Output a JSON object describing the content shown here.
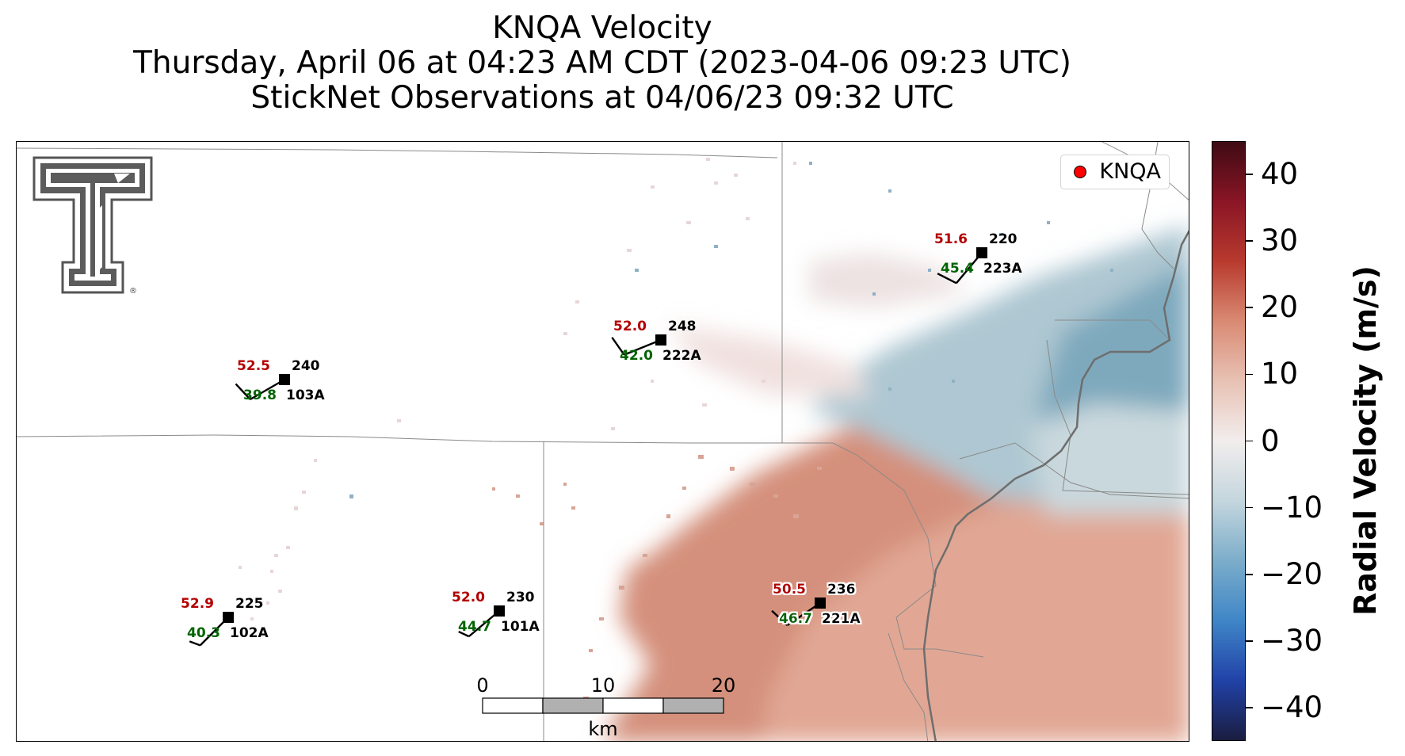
{
  "title": {
    "line1": "KNQA Velocity",
    "line2": "Thursday, April 06 at 04:23 AM CDT (2023-04-06 09:23 UTC)",
    "line3": "StickNet Observations at 04/06/23 09:32 UTC"
  },
  "legend": {
    "label": "KNQA",
    "color": "#ff0000"
  },
  "logo": {
    "name": "texas-tech-double-t-logo",
    "mark": "®"
  },
  "colorbar": {
    "label": "Radial Velocity (m/s)",
    "vmin": -45,
    "vmax": 45,
    "ticks": [
      {
        "value": 40,
        "label": "40"
      },
      {
        "value": 30,
        "label": "30"
      },
      {
        "value": 20,
        "label": "20"
      },
      {
        "value": 10,
        "label": "10"
      },
      {
        "value": 0,
        "label": "0"
      },
      {
        "value": -10,
        "label": "−10"
      },
      {
        "value": -20,
        "label": "−20"
      },
      {
        "value": -30,
        "label": "−30"
      },
      {
        "value": -40,
        "label": "−40"
      }
    ],
    "colors": [
      "#1a1d40",
      "#2142a8",
      "#3f86c7",
      "#7cadca",
      "#c4d6de",
      "#f2eded",
      "#e8c2b4",
      "#d98a73",
      "#b83a2e",
      "#8a1525",
      "#3f0b14"
    ]
  },
  "scale_bar": {
    "unit": "km",
    "ticks": [
      "0",
      "10",
      "20"
    ]
  },
  "stations": [
    {
      "id": "103A",
      "temp": "52.5",
      "dewpoint": "39.8",
      "direction": "240",
      "speed_kt": 10
    },
    {
      "id": "222A",
      "temp": "52.0",
      "dewpoint": "42.0",
      "direction": "248",
      "speed_kt": 10
    },
    {
      "id": "223A",
      "temp": "51.6",
      "dewpoint": "45.4",
      "direction": "220",
      "speed_kt": 10
    },
    {
      "id": "102A",
      "temp": "52.9",
      "dewpoint": "40.3",
      "direction": "225",
      "speed_kt": 5
    },
    {
      "id": "101A",
      "temp": "52.0",
      "dewpoint": "44.7",
      "direction": "230",
      "speed_kt": 5
    },
    {
      "id": "221A",
      "temp": "50.5",
      "dewpoint": "46.7",
      "direction": "236",
      "speed_kt": 10
    }
  ],
  "colors": {
    "temperature": "#b30000",
    "dewpoint": "#006400"
  }
}
